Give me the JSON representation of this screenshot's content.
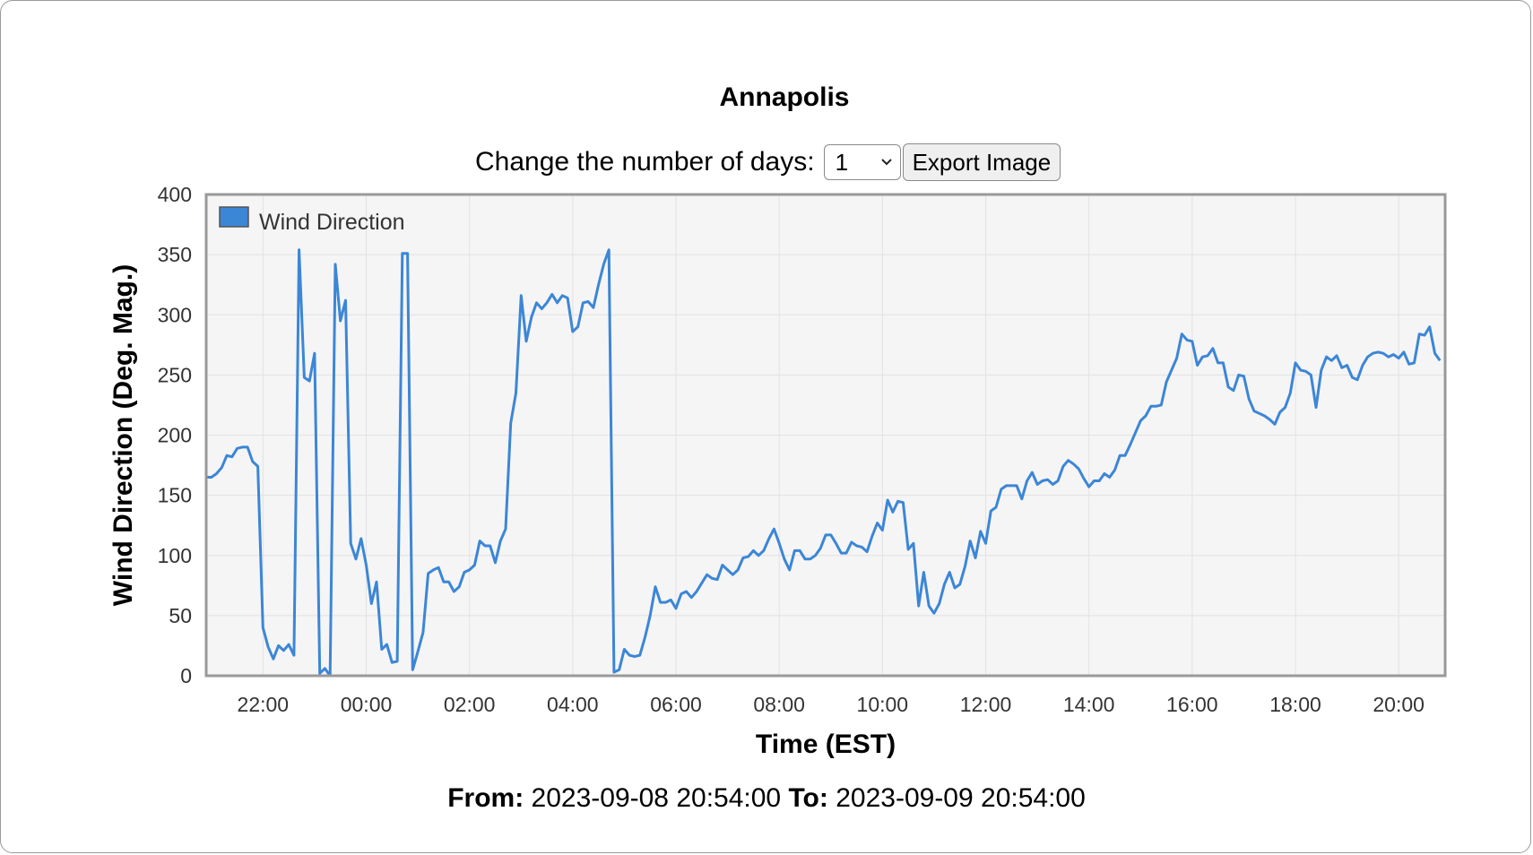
{
  "title": "Annapolis",
  "controls": {
    "days_label": "Change the number of days:",
    "days_value": "1",
    "export_label": "Export Image"
  },
  "range": {
    "from_label": "From:",
    "from_value": "2023-09-08 20:54:00",
    "to_label": "To:",
    "to_value": "2023-09-09 20:54:00"
  },
  "colors": {
    "series": "#3c86d6",
    "plot_bg": "#f5f5f5",
    "grid": "#e2e2e2",
    "border": "#999999"
  },
  "chart_data": {
    "type": "line",
    "title": "Annapolis",
    "xlabel": "Time (EST)",
    "ylabel": "Wind Direction (Deg. Mag.)",
    "ylim": [
      0,
      400
    ],
    "xlim": [
      "2023-09-08 20:54",
      "2023-09-09 20:54"
    ],
    "yticks": [
      "0",
      "50",
      "100",
      "150",
      "200",
      "250",
      "300",
      "350",
      "400"
    ],
    "xticks": [
      {
        "t": "22:00",
        "label": "22:00"
      },
      {
        "t": "00:00",
        "label": "00:00"
      },
      {
        "t": "02:00",
        "label": "02:00"
      },
      {
        "t": "04:00",
        "label": "04:00"
      },
      {
        "t": "06:00",
        "label": "06:00"
      },
      {
        "t": "08:00",
        "label": "08:00"
      },
      {
        "t": "10:00",
        "label": "10:00"
      },
      {
        "t": "12:00",
        "label": "12:00"
      },
      {
        "t": "14:00",
        "label": "14:00"
      },
      {
        "t": "16:00",
        "label": "16:00"
      },
      {
        "t": "18:00",
        "label": "18:00"
      },
      {
        "t": "20:00",
        "label": "20:00"
      }
    ],
    "grid": true,
    "legend": "top-left",
    "series": [
      {
        "name": "Wind Direction",
        "points": [
          [
            "20:54",
            165
          ],
          [
            "21:00",
            165
          ],
          [
            "21:06",
            168
          ],
          [
            "21:12",
            173
          ],
          [
            "21:18",
            183
          ],
          [
            "21:24",
            182
          ],
          [
            "21:30",
            189
          ],
          [
            "21:36",
            190
          ],
          [
            "21:42",
            190
          ],
          [
            "21:48",
            178
          ],
          [
            "21:54",
            174
          ],
          [
            "22:00",
            40
          ],
          [
            "22:06",
            24
          ],
          [
            "22:12",
            14
          ],
          [
            "22:18",
            25
          ],
          [
            "22:24",
            21
          ],
          [
            "22:30",
            26
          ],
          [
            "22:36",
            17
          ],
          [
            "22:42",
            354
          ],
          [
            "22:48",
            248
          ],
          [
            "22:54",
            245
          ],
          [
            "23:00",
            268
          ],
          [
            "23:06",
            2
          ],
          [
            "23:12",
            6
          ],
          [
            "23:18",
            0
          ],
          [
            "23:24",
            342
          ],
          [
            "23:30",
            295
          ],
          [
            "23:36",
            312
          ],
          [
            "23:42",
            110
          ],
          [
            "23:48",
            97
          ],
          [
            "23:54",
            114
          ],
          [
            "00:00",
            92
          ],
          [
            "00:06",
            60
          ],
          [
            "00:12",
            78
          ],
          [
            "00:18",
            22
          ],
          [
            "00:24",
            26
          ],
          [
            "00:30",
            11
          ],
          [
            "00:36",
            12
          ],
          [
            "00:42",
            351
          ],
          [
            "00:48",
            351
          ],
          [
            "00:54",
            5
          ],
          [
            "01:00",
            20
          ],
          [
            "01:06",
            36
          ],
          [
            "01:12",
            85
          ],
          [
            "01:18",
            88
          ],
          [
            "01:24",
            90
          ],
          [
            "01:30",
            78
          ],
          [
            "01:36",
            78
          ],
          [
            "01:42",
            70
          ],
          [
            "01:48",
            74
          ],
          [
            "01:54",
            86
          ],
          [
            "02:00",
            88
          ],
          [
            "02:06",
            92
          ],
          [
            "02:12",
            112
          ],
          [
            "02:18",
            108
          ],
          [
            "02:24",
            108
          ],
          [
            "02:30",
            94
          ],
          [
            "02:36",
            112
          ],
          [
            "02:42",
            122
          ],
          [
            "02:48",
            210
          ],
          [
            "02:54",
            235
          ],
          [
            "03:00",
            316
          ],
          [
            "03:06",
            278
          ],
          [
            "03:12",
            298
          ],
          [
            "03:18",
            310
          ],
          [
            "03:24",
            305
          ],
          [
            "03:30",
            310
          ],
          [
            "03:36",
            317
          ],
          [
            "03:42",
            310
          ],
          [
            "03:48",
            316
          ],
          [
            "03:54",
            314
          ],
          [
            "04:00",
            286
          ],
          [
            "04:06",
            290
          ],
          [
            "04:12",
            310
          ],
          [
            "04:18",
            311
          ],
          [
            "04:24",
            306
          ],
          [
            "04:30",
            325
          ],
          [
            "04:36",
            342
          ],
          [
            "04:42",
            354
          ],
          [
            "04:48",
            3
          ],
          [
            "04:54",
            5
          ],
          [
            "05:00",
            22
          ],
          [
            "05:06",
            17
          ],
          [
            "05:12",
            16
          ],
          [
            "05:18",
            17
          ],
          [
            "05:24",
            32
          ],
          [
            "05:30",
            50
          ],
          [
            "05:36",
            74
          ],
          [
            "05:42",
            61
          ],
          [
            "05:48",
            61
          ],
          [
            "05:54",
            63
          ],
          [
            "06:00",
            56
          ],
          [
            "06:06",
            68
          ],
          [
            "06:12",
            70
          ],
          [
            "06:18",
            65
          ],
          [
            "06:24",
            70
          ],
          [
            "06:30",
            77
          ],
          [
            "06:36",
            84
          ],
          [
            "06:42",
            81
          ],
          [
            "06:48",
            80
          ],
          [
            "06:54",
            92
          ],
          [
            "07:00",
            88
          ],
          [
            "07:06",
            84
          ],
          [
            "07:12",
            88
          ],
          [
            "07:18",
            98
          ],
          [
            "07:24",
            99
          ],
          [
            "07:30",
            104
          ],
          [
            "07:36",
            100
          ],
          [
            "07:42",
            104
          ],
          [
            "07:48",
            114
          ],
          [
            "07:54",
            122
          ],
          [
            "08:00",
            110
          ],
          [
            "08:06",
            97
          ],
          [
            "08:12",
            88
          ],
          [
            "08:18",
            104
          ],
          [
            "08:24",
            104
          ],
          [
            "08:30",
            97
          ],
          [
            "08:36",
            97
          ],
          [
            "08:42",
            100
          ],
          [
            "08:48",
            106
          ],
          [
            "08:54",
            117
          ],
          [
            "09:00",
            117
          ],
          [
            "09:06",
            110
          ],
          [
            "09:12",
            102
          ],
          [
            "09:18",
            102
          ],
          [
            "09:24",
            111
          ],
          [
            "09:30",
            108
          ],
          [
            "09:36",
            107
          ],
          [
            "09:42",
            103
          ],
          [
            "09:48",
            116
          ],
          [
            "09:54",
            127
          ],
          [
            "10:00",
            121
          ],
          [
            "10:06",
            146
          ],
          [
            "10:12",
            136
          ],
          [
            "10:18",
            145
          ],
          [
            "10:24",
            144
          ],
          [
            "10:30",
            105
          ],
          [
            "10:36",
            110
          ],
          [
            "10:42",
            58
          ],
          [
            "10:48",
            86
          ],
          [
            "10:54",
            58
          ],
          [
            "11:00",
            52
          ],
          [
            "11:06",
            60
          ],
          [
            "11:12",
            76
          ],
          [
            "11:18",
            86
          ],
          [
            "11:24",
            73
          ],
          [
            "11:30",
            76
          ],
          [
            "11:36",
            91
          ],
          [
            "11:42",
            112
          ],
          [
            "11:48",
            98
          ],
          [
            "11:54",
            120
          ],
          [
            "12:00",
            110
          ],
          [
            "12:06",
            137
          ],
          [
            "12:12",
            140
          ],
          [
            "12:18",
            155
          ],
          [
            "12:24",
            158
          ],
          [
            "12:30",
            158
          ],
          [
            "12:36",
            158
          ],
          [
            "12:42",
            147
          ],
          [
            "12:48",
            162
          ],
          [
            "12:54",
            169
          ],
          [
            "13:00",
            159
          ],
          [
            "13:06",
            162
          ],
          [
            "13:12",
            163
          ],
          [
            "13:18",
            159
          ],
          [
            "13:24",
            162
          ],
          [
            "13:30",
            174
          ],
          [
            "13:36",
            179
          ],
          [
            "13:42",
            176
          ],
          [
            "13:48",
            172
          ],
          [
            "13:54",
            164
          ],
          [
            "14:00",
            157
          ],
          [
            "14:06",
            162
          ],
          [
            "14:12",
            162
          ],
          [
            "14:18",
            168
          ],
          [
            "14:24",
            165
          ],
          [
            "14:30",
            171
          ],
          [
            "14:36",
            183
          ],
          [
            "14:42",
            183
          ],
          [
            "14:48",
            192
          ],
          [
            "14:54",
            202
          ],
          [
            "15:00",
            212
          ],
          [
            "15:06",
            216
          ],
          [
            "15:12",
            224
          ],
          [
            "15:18",
            224
          ],
          [
            "15:24",
            225
          ],
          [
            "15:30",
            244
          ],
          [
            "15:36",
            254
          ],
          [
            "15:42",
            264
          ],
          [
            "15:48",
            284
          ],
          [
            "15:54",
            279
          ],
          [
            "16:00",
            278
          ],
          [
            "16:06",
            258
          ],
          [
            "16:12",
            265
          ],
          [
            "16:18",
            266
          ],
          [
            "16:24",
            272
          ],
          [
            "16:30",
            260
          ],
          [
            "16:36",
            260
          ],
          [
            "16:42",
            240
          ],
          [
            "16:48",
            237
          ],
          [
            "16:54",
            250
          ],
          [
            "17:00",
            249
          ],
          [
            "17:06",
            230
          ],
          [
            "17:12",
            220
          ],
          [
            "17:18",
            218
          ],
          [
            "17:24",
            216
          ],
          [
            "17:30",
            213
          ],
          [
            "17:36",
            209
          ],
          [
            "17:42",
            219
          ],
          [
            "17:48",
            223
          ],
          [
            "17:54",
            235
          ],
          [
            "18:00",
            260
          ],
          [
            "18:06",
            254
          ],
          [
            "18:12",
            253
          ],
          [
            "18:18",
            250
          ],
          [
            "18:24",
            223
          ],
          [
            "18:30",
            254
          ],
          [
            "18:36",
            265
          ],
          [
            "18:42",
            262
          ],
          [
            "18:48",
            266
          ],
          [
            "18:54",
            256
          ],
          [
            "19:00",
            258
          ],
          [
            "19:06",
            248
          ],
          [
            "19:12",
            246
          ],
          [
            "19:18",
            258
          ],
          [
            "19:24",
            265
          ],
          [
            "19:30",
            268
          ],
          [
            "19:36",
            269
          ],
          [
            "19:42",
            268
          ],
          [
            "19:48",
            265
          ],
          [
            "19:54",
            267
          ],
          [
            "20:00",
            264
          ],
          [
            "20:06",
            269
          ],
          [
            "20:12",
            259
          ],
          [
            "20:18",
            260
          ],
          [
            "20:24",
            284
          ],
          [
            "20:30",
            283
          ],
          [
            "20:36",
            290
          ],
          [
            "20:42",
            268
          ],
          [
            "20:48",
            262
          ]
        ]
      }
    ]
  }
}
